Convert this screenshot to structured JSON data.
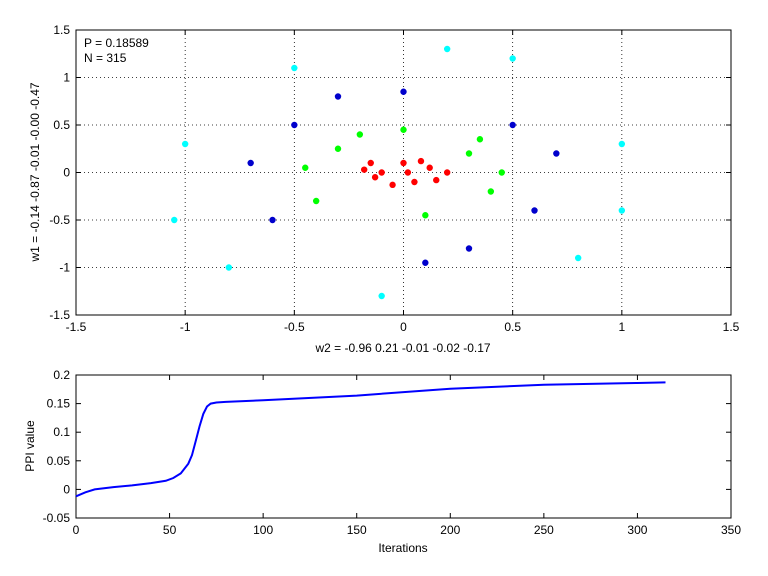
{
  "chart_data": [
    {
      "type": "scatter",
      "annotations": [
        "P = 0.18589",
        "N = 315"
      ],
      "xlabel": "w2 = -0.96  0.21  -0.01  -0.02  -0.17",
      "ylabel": "w1 = -0.14  -0.87  -0.01  -0.00  -0.47",
      "xlim": [
        -1.5,
        1.5
      ],
      "ylim": [
        -1.5,
        1.5
      ],
      "xticks": [
        -1.5,
        -1,
        -0.5,
        0,
        0.5,
        1,
        1.5
      ],
      "xtick_labels": [
        "-1.5",
        "-1",
        "-0.5",
        "0",
        "0.5",
        "1",
        "1.5"
      ],
      "yticks": [
        -1.5,
        -1,
        -0.5,
        0,
        0.5,
        1,
        1.5
      ],
      "ytick_labels": [
        "-1.5",
        "-1",
        "-0.5",
        "0",
        "0.5",
        "1",
        "1.5"
      ],
      "grid": true,
      "series": [
        {
          "color": "#ff0000",
          "points": [
            [
              0.0,
              0.1
            ],
            [
              -0.1,
              0.0
            ],
            [
              0.05,
              -0.1
            ],
            [
              0.12,
              0.05
            ],
            [
              -0.13,
              -0.05
            ],
            [
              0.2,
              0.0
            ],
            [
              -0.15,
              0.1
            ],
            [
              0.08,
              0.12
            ],
            [
              -0.05,
              -0.13
            ],
            [
              0.15,
              -0.08
            ],
            [
              -0.18,
              0.03
            ],
            [
              0.02,
              0.0
            ]
          ]
        },
        {
          "color": "#00ff00",
          "points": [
            [
              0.3,
              0.2
            ],
            [
              -0.3,
              0.25
            ],
            [
              0.4,
              -0.2
            ],
            [
              -0.4,
              -0.3
            ],
            [
              0.0,
              0.45
            ],
            [
              0.1,
              -0.45
            ],
            [
              -0.2,
              0.4
            ],
            [
              0.35,
              0.35
            ],
            [
              -0.45,
              0.05
            ],
            [
              0.45,
              0.0
            ]
          ]
        },
        {
          "color": "#0000cc",
          "points": [
            [
              0.5,
              0.5
            ],
            [
              -0.5,
              0.5
            ],
            [
              0.6,
              -0.4
            ],
            [
              -0.6,
              -0.5
            ],
            [
              0.0,
              0.85
            ],
            [
              0.1,
              -0.95
            ],
            [
              -0.3,
              0.8
            ],
            [
              0.7,
              0.2
            ],
            [
              -0.7,
              0.1
            ],
            [
              0.3,
              -0.8
            ]
          ]
        },
        {
          "color": "#00ffff",
          "points": [
            [
              1.0,
              0.3
            ],
            [
              -1.0,
              0.3
            ],
            [
              0.8,
              -0.9
            ],
            [
              -0.8,
              -1.0
            ],
            [
              0.2,
              1.3
            ],
            [
              -0.1,
              -1.3
            ],
            [
              -0.5,
              1.1
            ],
            [
              1.0,
              -0.4
            ],
            [
              -1.05,
              -0.5
            ],
            [
              0.5,
              1.2
            ]
          ]
        }
      ]
    },
    {
      "type": "line",
      "xlabel": "Iterations",
      "ylabel": "PPI value",
      "xlim": [
        0,
        350
      ],
      "ylim": [
        -0.05,
        0.2
      ],
      "xticks": [
        0,
        50,
        100,
        150,
        200,
        250,
        300,
        350
      ],
      "xtick_labels": [
        "0",
        "50",
        "100",
        "150",
        "200",
        "250",
        "300",
        "350"
      ],
      "yticks": [
        -0.05,
        0,
        0.05,
        0.1,
        0.15,
        0.2
      ],
      "ytick_labels": [
        "-0.05",
        "0",
        "0.05",
        "0.1",
        "0.15",
        "0.2"
      ],
      "grid": false,
      "series": [
        {
          "color": "#0000ff",
          "x": [
            0,
            5,
            10,
            20,
            30,
            40,
            48,
            52,
            56,
            60,
            62,
            64,
            66,
            68,
            70,
            72,
            75,
            80,
            100,
            150,
            200,
            250,
            300,
            315
          ],
          "y": [
            -0.012,
            -0.005,
            0.0,
            0.004,
            0.007,
            0.011,
            0.015,
            0.02,
            0.028,
            0.045,
            0.06,
            0.085,
            0.11,
            0.132,
            0.145,
            0.15,
            0.152,
            0.153,
            0.156,
            0.164,
            0.176,
            0.183,
            0.186,
            0.187
          ]
        }
      ]
    }
  ]
}
